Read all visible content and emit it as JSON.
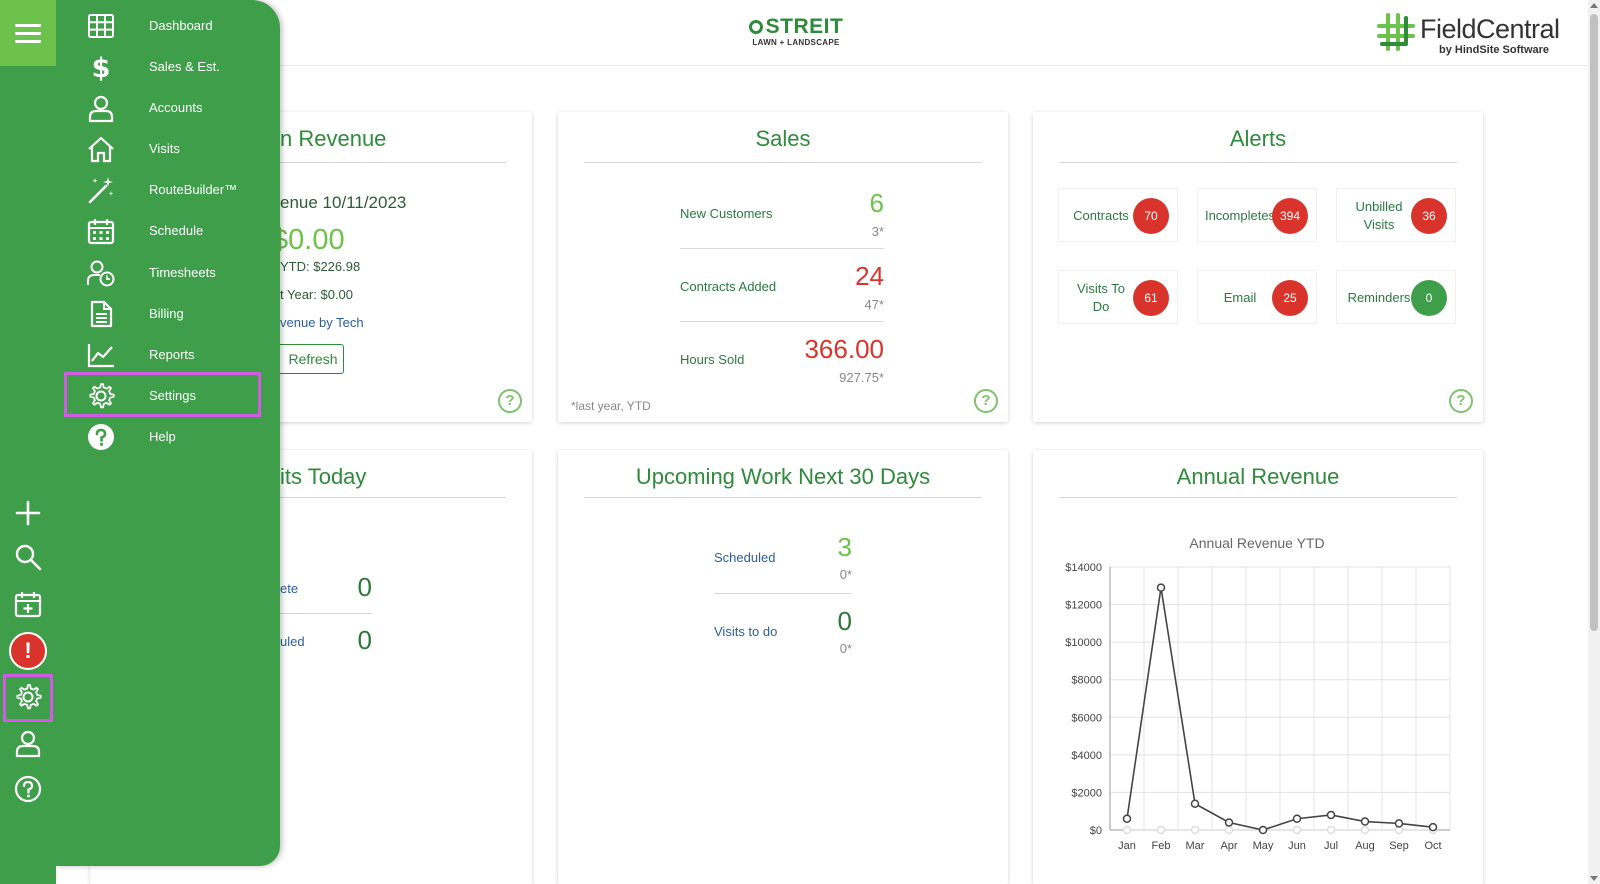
{
  "header": {
    "brand_center_title": "STREIT",
    "brand_center_subtitle": "LAWN + LANDSCAPE",
    "brand_right_title": "FieldCentral",
    "brand_right_subtitle": "by HindSite Software"
  },
  "sidebar": {
    "items": [
      {
        "label": "Dashboard",
        "icon": "grid-icon"
      },
      {
        "label": "Sales & Est.",
        "icon": "dollar-icon"
      },
      {
        "label": "Accounts",
        "icon": "user-icon"
      },
      {
        "label": "Visits",
        "icon": "home-icon"
      },
      {
        "label": "RouteBuilder™",
        "icon": "magic-wand-icon"
      },
      {
        "label": "Schedule",
        "icon": "calendar-icon"
      },
      {
        "label": "Timesheets",
        "icon": "user-clock-icon"
      },
      {
        "label": "Billing",
        "icon": "document-icon"
      },
      {
        "label": "Reports",
        "icon": "line-chart-icon"
      },
      {
        "label": "Settings",
        "icon": "gear-icon",
        "selected": true
      },
      {
        "label": "Help",
        "icon": "question-circle-icon"
      }
    ]
  },
  "rail": {
    "icons": [
      "menu-icon",
      "plus-icon",
      "search-icon",
      "calendar-add-icon",
      "alert-icon",
      "gear-icon",
      "user-icon",
      "help-icon"
    ],
    "alert_glyph": "!"
  },
  "revenue_card": {
    "title": "n Revenue",
    "date_label": "enue 10/11/2023",
    "amount": "$0.00",
    "ytd": "YTD: $226.98",
    "last_year": "t Year: $0.00",
    "by_tech_link": "venue by Tech",
    "refresh_label": "Refresh"
  },
  "sales_card": {
    "title": "Sales",
    "rows": [
      {
        "label": "New Customers",
        "value": "6",
        "prior": "3*",
        "color": "#6cc24a"
      },
      {
        "label": "Contracts Added",
        "value": "24",
        "prior": "47*",
        "color": "#d9342b"
      },
      {
        "label": "Hours Sold",
        "value": "366.00",
        "prior": "927.75*",
        "color": "#d9342b"
      }
    ],
    "note": "*last year, YTD"
  },
  "alerts_card": {
    "title": "Alerts",
    "items": [
      {
        "label": "Contracts",
        "count": "70",
        "color": "#d9342b"
      },
      {
        "label": "Incompletes",
        "count": "394",
        "color": "#d9342b"
      },
      {
        "label": "Unbilled Visits",
        "count": "36",
        "color": "#d9342b"
      },
      {
        "label": "Visits To Do",
        "count": "61",
        "color": "#d9342b"
      },
      {
        "label": "Email",
        "count": "25",
        "color": "#d9342b"
      },
      {
        "label": "Reminders",
        "count": "0",
        "color": "#3f9e4a"
      }
    ]
  },
  "visits_today_card": {
    "title": "its Today",
    "rows": [
      {
        "label": "ete",
        "value": "0"
      },
      {
        "label": "uled",
        "value": "0"
      }
    ]
  },
  "upcoming_card": {
    "title": "Upcoming Work Next 30 Days",
    "rows": [
      {
        "label": "Scheduled",
        "value": "3",
        "prior": "0*",
        "color": "#6cc24a"
      },
      {
        "label": "Visits to do",
        "value": "0",
        "prior": "0*",
        "color": "#2c7a3a"
      }
    ]
  },
  "annual_card": {
    "title": "Annual Revenue"
  },
  "chart_data": {
    "type": "line",
    "title": "Annual Revenue YTD",
    "categories": [
      "Jan",
      "Feb",
      "Mar",
      "Apr",
      "May",
      "Jun",
      "Jul",
      "Aug",
      "Sep",
      "Oct"
    ],
    "y_ticks": [
      "$0",
      "$2000",
      "$4000",
      "$6000",
      "$8000",
      "$10000",
      "$12000",
      "$14000"
    ],
    "ylim": [
      0,
      14000
    ],
    "series": [
      {
        "values": [
          600,
          12900,
          1400,
          400,
          0,
          600,
          800,
          450,
          350,
          150
        ],
        "color": "#444444"
      },
      {
        "values": [
          0,
          0,
          0,
          0,
          0,
          0,
          0,
          0,
          0,
          0
        ],
        "color": "#dddddd"
      }
    ],
    "grid": true
  }
}
